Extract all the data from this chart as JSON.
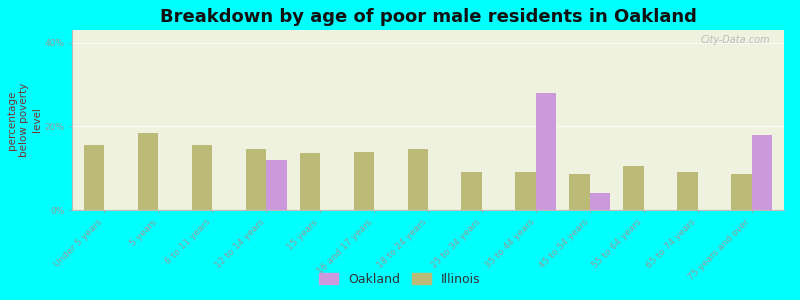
{
  "title": "Breakdown by age of poor male residents in Oakland",
  "ylabel": "percentage\nbelow poverty\nlevel",
  "background_color": "#00ffff",
  "plot_bg_color": "#eef2de",
  "categories": [
    "Under 5 years",
    "5 years",
    "6 to 11 years",
    "12 to 14 years",
    "15 years",
    "16 and 17 years",
    "18 to 24 years",
    "25 to 34 years",
    "35 to 44 years",
    "45 to 54 years",
    "55 to 64 years",
    "65 to 74 years",
    "75 years and over"
  ],
  "oakland_values": [
    0,
    0,
    0,
    12.0,
    0,
    0,
    0,
    0,
    28.0,
    4.0,
    0,
    0,
    18.0
  ],
  "illinois_values": [
    15.5,
    18.5,
    15.5,
    14.5,
    13.5,
    13.8,
    14.5,
    9.0,
    9.0,
    8.5,
    10.5,
    9.0,
    8.5
  ],
  "oakland_color": "#cc99dd",
  "illinois_color": "#bbbb77",
  "bar_width": 0.38,
  "ylim": [
    0,
    43
  ],
  "yticks": [
    0,
    20,
    40
  ],
  "ytick_labels": [
    "0%",
    "20%",
    "40%"
  ],
  "legend_oakland": "Oakland",
  "legend_illinois": "Illinois",
  "title_fontsize": 13,
  "axis_label_fontsize": 7.5,
  "tick_fontsize": 6.5,
  "legend_fontsize": 9,
  "watermark": "City-Data.com"
}
